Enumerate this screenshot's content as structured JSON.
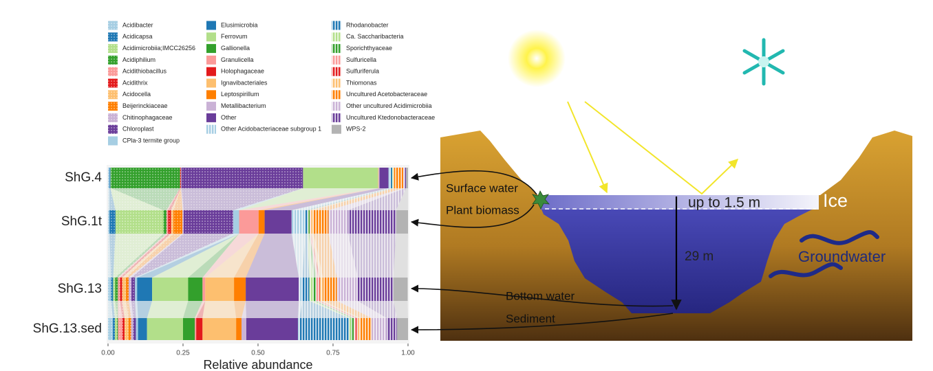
{
  "chart_data": {
    "type": "bar",
    "orientation": "horizontal",
    "stacked": true,
    "alluvial": true,
    "legend": "top",
    "grid": false,
    "x_label": "Relative abundance",
    "categories": [
      "ShG.4",
      "ShG.1t",
      "ShG.13",
      "ShG.13.sed"
    ],
    "xlim": [
      0,
      1
    ],
    "xticks": [
      {
        "value": 0,
        "label": "0.00"
      },
      {
        "value": 0.25,
        "label": "0.25"
      },
      {
        "value": 0.5,
        "label": "0.50"
      },
      {
        "value": 0.75,
        "label": "0.75"
      },
      {
        "value": 1,
        "label": "1.00"
      }
    ],
    "series": [
      {
        "name": "Acidibacter",
        "color": "#a6cee3",
        "pattern": "dots",
        "values": [
          0.005,
          0.005,
          0.01,
          0.016
        ]
      },
      {
        "name": "Acidicapsa",
        "color": "#1f78b4",
        "pattern": "dots",
        "values": [
          0.003,
          0.02,
          0.007,
          0.007
        ]
      },
      {
        "name": "Acidimicrobiia;IMCC26256",
        "color": "#b2df8a",
        "pattern": "dots",
        "values": [
          0.002,
          0.16,
          0.007,
          0.007
        ]
      },
      {
        "name": "Acidiphilium",
        "color": "#33a02c",
        "pattern": "dots",
        "values": [
          0.23,
          0.01,
          0.009,
          0.003
        ]
      },
      {
        "name": "Acidithiobacillus",
        "color": "#fb9a99",
        "pattern": "dots",
        "values": [
          0,
          0.005,
          0.007,
          0.015
        ]
      },
      {
        "name": "Acidithrix",
        "color": "#e31a1c",
        "pattern": "dots",
        "values": [
          0.003,
          0.01,
          0.007,
          0.007
        ]
      },
      {
        "name": "Acidocella",
        "color": "#fdbf6f",
        "pattern": "dots",
        "values": [
          0,
          0.008,
          0.013,
          0.013
        ]
      },
      {
        "name": "Beijerinckiaceae",
        "color": "#ff7f00",
        "pattern": "dots",
        "values": [
          0,
          0.03,
          0.009,
          0.009
        ]
      },
      {
        "name": "Chitinophagaceae",
        "color": "#cab2d6",
        "pattern": "dots",
        "values": [
          0.002,
          0.004,
          0.009,
          0.007
        ]
      },
      {
        "name": "Chloroplast",
        "color": "#6a3d9a",
        "pattern": "dots",
        "values": [
          0.405,
          0.165,
          0.012,
          0.009
        ]
      },
      {
        "name": "CPla-3 termite group",
        "color": "#a6cee3",
        "pattern": "solid",
        "values": [
          0,
          0.02,
          0.007,
          0.007
        ]
      },
      {
        "name": "Elusimicrobia",
        "color": "#1f78b4",
        "pattern": "solid",
        "values": [
          0,
          0,
          0.05,
          0.03
        ]
      },
      {
        "name": "Ferrovum",
        "color": "#b2df8a",
        "pattern": "solid",
        "values": [
          0.25,
          0,
          0.12,
          0.12
        ]
      },
      {
        "name": "Gallionella",
        "color": "#33a02c",
        "pattern": "solid",
        "values": [
          0,
          0,
          0.048,
          0.039
        ]
      },
      {
        "name": "Granulicella",
        "color": "#fb9a99",
        "pattern": "solid",
        "values": [
          0,
          0.065,
          0.009,
          0.005
        ]
      },
      {
        "name": "Holophagaceae",
        "color": "#e31a1c",
        "pattern": "solid",
        "values": [
          0,
          0,
          0,
          0.021
        ]
      },
      {
        "name": "Ignavibacteriales",
        "color": "#fdbf6f",
        "pattern": "solid",
        "values": [
          0.002,
          0,
          0.096,
          0.112
        ]
      },
      {
        "name": "Leptospirillum",
        "color": "#ff7f00",
        "pattern": "solid",
        "values": [
          0,
          0.02,
          0.039,
          0.018
        ]
      },
      {
        "name": "Metallibacterium",
        "color": "#cab2d6",
        "pattern": "solid",
        "values": [
          0.003,
          0,
          0,
          0.016
        ]
      },
      {
        "name": "Other",
        "color": "#6a3d9a",
        "pattern": "solid",
        "values": [
          0.03,
          0.09,
          0.177,
          0.172
        ]
      },
      {
        "name": "Other Acidobacteriaceae subgroup 1",
        "color": "#a6cee3",
        "pattern": "stripes",
        "values": [
          0.007,
          0.045,
          0.012,
          0.005
        ]
      },
      {
        "name": "Rhodanobacter",
        "color": "#1f78b4",
        "pattern": "stripes",
        "values": [
          0.005,
          0.007,
          0.023,
          0.165
        ]
      },
      {
        "name": "Ca. Saccharibacteria",
        "color": "#b2df8a",
        "pattern": "stripes",
        "values": [
          0.002,
          0.005,
          0.014,
          0.007
        ]
      },
      {
        "name": "Sporichthyaceae",
        "color": "#33a02c",
        "pattern": "stripes",
        "values": [
          0.002,
          0.003,
          0.009,
          0.009
        ]
      },
      {
        "name": "Sulfuricella",
        "color": "#fb9a99",
        "pattern": "stripes",
        "values": [
          0,
          0.005,
          0.007,
          0.007
        ]
      },
      {
        "name": "Sulfuriferula",
        "color": "#e31a1c",
        "pattern": "stripes",
        "values": [
          0,
          0,
          0.005,
          0.007
        ]
      },
      {
        "name": "Thiomonas",
        "color": "#fdbf6f",
        "pattern": "stripes",
        "values": [
          0.003,
          0.008,
          0.011,
          0.009
        ]
      },
      {
        "name": "Uncultured Acetobacteraceae",
        "color": "#ff7f00",
        "pattern": "stripes",
        "values": [
          0.03,
          0.05,
          0.046,
          0.037
        ]
      },
      {
        "name": "Other uncultured Acidimicrobiia",
        "color": "#cab2d6",
        "pattern": "stripes",
        "values": [
          0.006,
          0.065,
          0.069,
          0.05
        ]
      },
      {
        "name": "Uncultured Ktedonobacteraceae",
        "color": "#6a3d9a",
        "pattern": "stripes",
        "values": [
          0.003,
          0.16,
          0.119,
          0.034
        ]
      },
      {
        "name": "WPS-2",
        "color": "#b3b3b3",
        "pattern": "solid",
        "values": [
          0.007,
          0.04,
          0.048,
          0.037
        ]
      }
    ]
  },
  "diagram": {
    "surface_water": "Surface water",
    "plant_biomass": "Plant biomass",
    "ice_thickness": "up to 1.5 m",
    "ice": "Ice",
    "depth": "29 m",
    "groundwater": "Groundwater",
    "bottom_water": "Bottom water",
    "sediment": "Sediment"
  }
}
